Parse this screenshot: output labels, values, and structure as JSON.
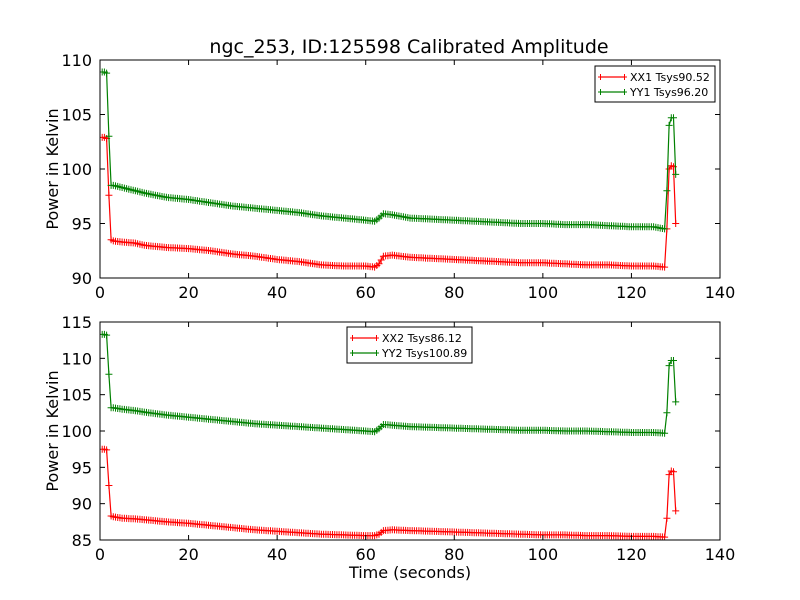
{
  "chart_data": {
    "title": "ngc_253, ID:125598 Calibrated Amplitude",
    "xlabel": "Time (seconds)",
    "panels": [
      {
        "type": "line",
        "ylabel": "Power in Kelvin",
        "xlim": [
          0,
          140
        ],
        "ylim": [
          90,
          110
        ],
        "xticks": [
          0,
          20,
          40,
          60,
          80,
          100,
          120,
          140
        ],
        "yticks": [
          90,
          95,
          100,
          105,
          110
        ],
        "legend_position": "top-right",
        "series": [
          {
            "name": "XX1 Tsys90.52",
            "color": "#ff0000",
            "points": [
              [
                0.5,
                102.9
              ],
              [
                1.0,
                102.9
              ],
              [
                1.5,
                102.8
              ],
              [
                2.0,
                97.6
              ],
              [
                2.5,
                93.5
              ],
              [
                3,
                93.4
              ],
              [
                5,
                93.3
              ],
              [
                8,
                93.2
              ],
              [
                10,
                93.0
              ],
              [
                15,
                92.8
              ],
              [
                20,
                92.7
              ],
              [
                25,
                92.5
              ],
              [
                30,
                92.2
              ],
              [
                35,
                92.0
              ],
              [
                40,
                91.7
              ],
              [
                45,
                91.5
              ],
              [
                50,
                91.2
              ],
              [
                55,
                91.1
              ],
              [
                60,
                91.1
              ],
              [
                62,
                91.0
              ],
              [
                63,
                91.3
              ],
              [
                64,
                92.0
              ],
              [
                66,
                92.1
              ],
              [
                70,
                91.9
              ],
              [
                75,
                91.8
              ],
              [
                80,
                91.7
              ],
              [
                85,
                91.6
              ],
              [
                90,
                91.5
              ],
              [
                95,
                91.4
              ],
              [
                100,
                91.4
              ],
              [
                105,
                91.3
              ],
              [
                110,
                91.2
              ],
              [
                115,
                91.2
              ],
              [
                120,
                91.1
              ],
              [
                125,
                91.1
              ],
              [
                127.5,
                91.0
              ],
              [
                128,
                94.5
              ],
              [
                128.5,
                100.0
              ],
              [
                129,
                100.3
              ],
              [
                129.5,
                100.2
              ],
              [
                130,
                95.0
              ]
            ]
          },
          {
            "name": "YY1 Tsys96.20",
            "color": "#008000",
            "points": [
              [
                0.5,
                108.9
              ],
              [
                1.0,
                108.9
              ],
              [
                1.5,
                108.8
              ],
              [
                2.0,
                103.0
              ],
              [
                2.5,
                98.5
              ],
              [
                3,
                98.5
              ],
              [
                5,
                98.3
              ],
              [
                8,
                98.0
              ],
              [
                10,
                97.8
              ],
              [
                15,
                97.4
              ],
              [
                20,
                97.2
              ],
              [
                25,
                96.9
              ],
              [
                30,
                96.6
              ],
              [
                35,
                96.4
              ],
              [
                40,
                96.2
              ],
              [
                45,
                96.0
              ],
              [
                50,
                95.7
              ],
              [
                55,
                95.5
              ],
              [
                60,
                95.3
              ],
              [
                62,
                95.2
              ],
              [
                63,
                95.5
              ],
              [
                64,
                95.9
              ],
              [
                66,
                95.8
              ],
              [
                70,
                95.5
              ],
              [
                75,
                95.4
              ],
              [
                80,
                95.3
              ],
              [
                85,
                95.2
              ],
              [
                90,
                95.1
              ],
              [
                95,
                95.0
              ],
              [
                100,
                95.0
              ],
              [
                105,
                94.9
              ],
              [
                110,
                94.9
              ],
              [
                115,
                94.8
              ],
              [
                120,
                94.7
              ],
              [
                125,
                94.7
              ],
              [
                127.5,
                94.5
              ],
              [
                128,
                98.0
              ],
              [
                128.5,
                104.0
              ],
              [
                129,
                104.7
              ],
              [
                129.5,
                104.7
              ],
              [
                130,
                99.5
              ]
            ]
          }
        ]
      },
      {
        "type": "line",
        "ylabel": "Power in Kelvin",
        "xlim": [
          0,
          140
        ],
        "ylim": [
          85,
          115
        ],
        "xticks": [
          0,
          20,
          40,
          60,
          80,
          100,
          120,
          140
        ],
        "yticks": [
          85,
          90,
          95,
          100,
          105,
          110,
          115
        ],
        "legend_position": "top-center",
        "series": [
          {
            "name": "XX2 Tsys86.12",
            "color": "#ff0000",
            "points": [
              [
                0.5,
                97.5
              ],
              [
                1.0,
                97.5
              ],
              [
                1.5,
                97.4
              ],
              [
                2.0,
                92.5
              ],
              [
                2.5,
                88.3
              ],
              [
                3,
                88.2
              ],
              [
                5,
                88.0
              ],
              [
                8,
                87.9
              ],
              [
                10,
                87.8
              ],
              [
                15,
                87.5
              ],
              [
                20,
                87.3
              ],
              [
                25,
                87.0
              ],
              [
                30,
                86.7
              ],
              [
                35,
                86.4
              ],
              [
                40,
                86.2
              ],
              [
                45,
                86.0
              ],
              [
                50,
                85.8
              ],
              [
                55,
                85.7
              ],
              [
                60,
                85.6
              ],
              [
                62,
                85.6
              ],
              [
                63,
                85.8
              ],
              [
                64,
                86.3
              ],
              [
                66,
                86.4
              ],
              [
                70,
                86.3
              ],
              [
                75,
                86.2
              ],
              [
                80,
                86.1
              ],
              [
                85,
                86.0
              ],
              [
                90,
                85.9
              ],
              [
                95,
                85.8
              ],
              [
                100,
                85.7
              ],
              [
                105,
                85.7
              ],
              [
                110,
                85.6
              ],
              [
                115,
                85.6
              ],
              [
                120,
                85.5
              ],
              [
                125,
                85.5
              ],
              [
                127.5,
                85.4
              ],
              [
                128,
                88.0
              ],
              [
                128.5,
                94.0
              ],
              [
                129,
                94.5
              ],
              [
                129.5,
                94.4
              ],
              [
                130,
                89.0
              ]
            ]
          },
          {
            "name": "YY2 Tsys100.89",
            "color": "#008000",
            "points": [
              [
                0.5,
                113.3
              ],
              [
                1.0,
                113.3
              ],
              [
                1.5,
                113.2
              ],
              [
                2.0,
                107.8
              ],
              [
                2.5,
                103.2
              ],
              [
                3,
                103.2
              ],
              [
                5,
                103.0
              ],
              [
                8,
                102.8
              ],
              [
                10,
                102.6
              ],
              [
                15,
                102.2
              ],
              [
                20,
                101.9
              ],
              [
                25,
                101.6
              ],
              [
                30,
                101.3
              ],
              [
                35,
                101.0
              ],
              [
                40,
                100.8
              ],
              [
                45,
                100.6
              ],
              [
                50,
                100.4
              ],
              [
                55,
                100.2
              ],
              [
                60,
                100.0
              ],
              [
                62,
                99.9
              ],
              [
                63,
                100.3
              ],
              [
                64,
                100.9
              ],
              [
                66,
                100.8
              ],
              [
                70,
                100.6
              ],
              [
                75,
                100.5
              ],
              [
                80,
                100.4
              ],
              [
                85,
                100.3
              ],
              [
                90,
                100.2
              ],
              [
                95,
                100.1
              ],
              [
                100,
                100.1
              ],
              [
                105,
                100.0
              ],
              [
                110,
                100.0
              ],
              [
                115,
                99.9
              ],
              [
                120,
                99.8
              ],
              [
                125,
                99.8
              ],
              [
                127.5,
                99.7
              ],
              [
                128,
                102.5
              ],
              [
                128.5,
                109.0
              ],
              [
                129,
                109.7
              ],
              [
                129.5,
                109.7
              ],
              [
                130,
                104.0
              ]
            ]
          }
        ]
      }
    ]
  }
}
